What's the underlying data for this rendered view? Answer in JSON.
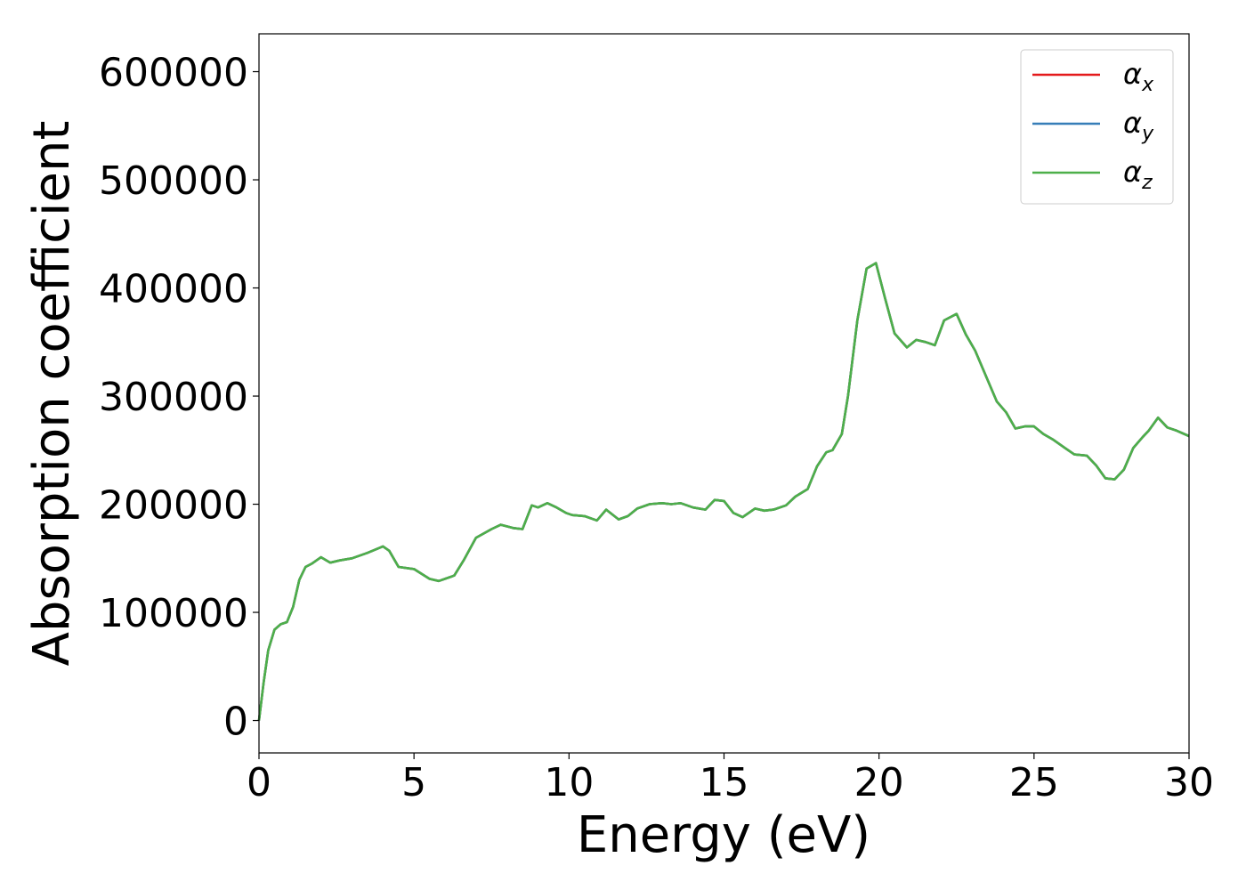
{
  "chart_data": {
    "type": "line",
    "xlabel": "Energy (eV)",
    "ylabel": "Absorption coefficient",
    "xlim": [
      0,
      30
    ],
    "ylim": [
      -30000,
      635000
    ],
    "xticks": [
      0,
      5,
      10,
      15,
      20,
      25,
      30
    ],
    "xtick_labels": [
      "0",
      "5",
      "10",
      "15",
      "20",
      "25",
      "30"
    ],
    "yticks": [
      0,
      100000,
      200000,
      300000,
      400000,
      500000,
      600000
    ],
    "ytick_labels": [
      "0",
      "100000",
      "200000",
      "300000",
      "400000",
      "500000",
      "600000"
    ],
    "grid": false,
    "legend_position": "top-right",
    "series": [
      {
        "name": "α_x",
        "legend_base": "α",
        "legend_sub": "x",
        "color": "#e41a1c",
        "x": [
          0,
          0.15,
          0.3,
          0.5,
          0.7,
          0.9,
          1.1,
          1.3,
          1.5,
          1.7,
          2.0,
          2.3,
          2.6,
          3.0,
          3.5,
          4.0,
          4.2,
          4.5,
          5.0,
          5.5,
          5.8,
          6.0,
          6.3,
          6.6,
          7.0,
          7.5,
          7.8,
          8.2,
          8.5,
          8.8,
          9.0,
          9.3,
          9.6,
          9.9,
          10.1,
          10.5,
          10.9,
          11.2,
          11.6,
          11.9,
          12.2,
          12.6,
          13.0,
          13.3,
          13.6,
          14.0,
          14.4,
          14.7,
          15.0,
          15.3,
          15.6,
          16.0,
          16.3,
          16.6,
          17.0,
          17.3,
          17.7,
          18.0,
          18.3,
          18.5,
          18.8,
          19.0,
          19.3,
          19.6,
          19.9,
          20.2,
          20.5,
          20.9,
          21.2,
          21.5,
          21.8,
          22.1,
          22.5,
          22.8,
          23.1,
          23.5,
          23.8,
          24.1,
          24.4,
          24.7,
          25.0,
          25.3,
          25.6,
          26.0,
          26.3,
          26.7,
          27.0,
          27.3,
          27.6,
          27.9,
          28.2,
          28.5,
          28.7,
          29.0,
          29.3,
          29.6,
          30.0
        ],
        "y": [
          0,
          35000,
          65000,
          84000,
          89000,
          91000,
          105000,
          130000,
          142000,
          145000,
          151000,
          146000,
          148000,
          150000,
          155000,
          161000,
          157000,
          142000,
          140000,
          131000,
          129000,
          131000,
          134000,
          148000,
          169000,
          177000,
          181000,
          178000,
          177000,
          199000,
          197000,
          201000,
          197000,
          192000,
          190000,
          189000,
          185000,
          195000,
          186000,
          189000,
          196000,
          200000,
          201000,
          200000,
          201000,
          197000,
          195000,
          204000,
          203000,
          192000,
          188000,
          196000,
          194000,
          195000,
          199000,
          207000,
          214000,
          235000,
          248000,
          250000,
          265000,
          300000,
          370000,
          418000,
          423000,
          390000,
          358000,
          345000,
          352000,
          350000,
          347000,
          370000,
          376000,
          357000,
          342000,
          315000,
          295000,
          285000,
          270000,
          272000,
          272000,
          265000,
          260000,
          252000,
          246000,
          245000,
          236000,
          224000,
          223000,
          232000,
          252000,
          262000,
          268000,
          280000,
          271000,
          268000,
          263000
        ]
      },
      {
        "name": "α_y",
        "legend_base": "α",
        "legend_sub": "y",
        "color": "#377eb8",
        "x": [
          0,
          0.15,
          0.3,
          0.5,
          0.7,
          0.9,
          1.1,
          1.3,
          1.5,
          1.7,
          2.0,
          2.3,
          2.6,
          3.0,
          3.5,
          4.0,
          4.2,
          4.5,
          5.0,
          5.5,
          5.8,
          6.0,
          6.3,
          6.6,
          7.0,
          7.5,
          7.8,
          8.2,
          8.5,
          8.8,
          9.0,
          9.3,
          9.6,
          9.9,
          10.1,
          10.5,
          10.9,
          11.2,
          11.6,
          11.9,
          12.2,
          12.6,
          13.0,
          13.3,
          13.6,
          14.0,
          14.4,
          14.7,
          15.0,
          15.3,
          15.6,
          16.0,
          16.3,
          16.6,
          17.0,
          17.3,
          17.7,
          18.0,
          18.3,
          18.5,
          18.8,
          19.0,
          19.3,
          19.6,
          19.9,
          20.2,
          20.5,
          20.9,
          21.2,
          21.5,
          21.8,
          22.1,
          22.5,
          22.8,
          23.1,
          23.5,
          23.8,
          24.1,
          24.4,
          24.7,
          25.0,
          25.3,
          25.6,
          26.0,
          26.3,
          26.7,
          27.0,
          27.3,
          27.6,
          27.9,
          28.2,
          28.5,
          28.7,
          29.0,
          29.3,
          29.6,
          30.0
        ],
        "y": [
          0,
          35000,
          65000,
          84000,
          89000,
          91000,
          105000,
          130000,
          142000,
          145000,
          151000,
          146000,
          148000,
          150000,
          155000,
          161000,
          157000,
          142000,
          140000,
          131000,
          129000,
          131000,
          134000,
          148000,
          169000,
          177000,
          181000,
          178000,
          177000,
          199000,
          197000,
          201000,
          197000,
          192000,
          190000,
          189000,
          185000,
          195000,
          186000,
          189000,
          196000,
          200000,
          201000,
          200000,
          201000,
          197000,
          195000,
          204000,
          203000,
          192000,
          188000,
          196000,
          194000,
          195000,
          199000,
          207000,
          214000,
          235000,
          248000,
          250000,
          265000,
          300000,
          370000,
          418000,
          423000,
          390000,
          358000,
          345000,
          352000,
          350000,
          347000,
          370000,
          376000,
          357000,
          342000,
          315000,
          295000,
          285000,
          270000,
          272000,
          272000,
          265000,
          260000,
          252000,
          246000,
          245000,
          236000,
          224000,
          223000,
          232000,
          252000,
          262000,
          268000,
          280000,
          271000,
          268000,
          263000
        ]
      },
      {
        "name": "α_z",
        "legend_base": "α",
        "legend_sub": "z",
        "color": "#4daf4a",
        "x": [
          0,
          0.15,
          0.3,
          0.5,
          0.7,
          0.9,
          1.1,
          1.3,
          1.5,
          1.7,
          2.0,
          2.3,
          2.6,
          3.0,
          3.5,
          4.0,
          4.2,
          4.5,
          5.0,
          5.5,
          5.8,
          6.0,
          6.3,
          6.6,
          7.0,
          7.5,
          7.8,
          8.2,
          8.5,
          8.8,
          9.0,
          9.3,
          9.6,
          9.9,
          10.1,
          10.5,
          10.9,
          11.2,
          11.6,
          11.9,
          12.2,
          12.6,
          13.0,
          13.3,
          13.6,
          14.0,
          14.4,
          14.7,
          15.0,
          15.3,
          15.6,
          16.0,
          16.3,
          16.6,
          17.0,
          17.3,
          17.7,
          18.0,
          18.3,
          18.5,
          18.8,
          19.0,
          19.3,
          19.6,
          19.9,
          20.2,
          20.5,
          20.9,
          21.2,
          21.5,
          21.8,
          22.1,
          22.5,
          22.8,
          23.1,
          23.5,
          23.8,
          24.1,
          24.4,
          24.7,
          25.0,
          25.3,
          25.6,
          26.0,
          26.3,
          26.7,
          27.0,
          27.3,
          27.6,
          27.9,
          28.2,
          28.5,
          28.7,
          29.0,
          29.3,
          29.6,
          30.0
        ],
        "y": [
          0,
          35000,
          65000,
          84000,
          89000,
          91000,
          105000,
          130000,
          142000,
          145000,
          151000,
          146000,
          148000,
          150000,
          155000,
          161000,
          157000,
          142000,
          140000,
          131000,
          129000,
          131000,
          134000,
          148000,
          169000,
          177000,
          181000,
          178000,
          177000,
          199000,
          197000,
          201000,
          197000,
          192000,
          190000,
          189000,
          185000,
          195000,
          186000,
          189000,
          196000,
          200000,
          201000,
          200000,
          201000,
          197000,
          195000,
          204000,
          203000,
          192000,
          188000,
          196000,
          194000,
          195000,
          199000,
          207000,
          214000,
          235000,
          248000,
          250000,
          265000,
          300000,
          370000,
          418000,
          423000,
          390000,
          358000,
          345000,
          352000,
          350000,
          347000,
          370000,
          376000,
          357000,
          342000,
          315000,
          295000,
          285000,
          270000,
          272000,
          272000,
          265000,
          260000,
          252000,
          246000,
          245000,
          236000,
          224000,
          223000,
          232000,
          252000,
          262000,
          268000,
          280000,
          271000,
          268000,
          263000
        ]
      }
    ]
  }
}
